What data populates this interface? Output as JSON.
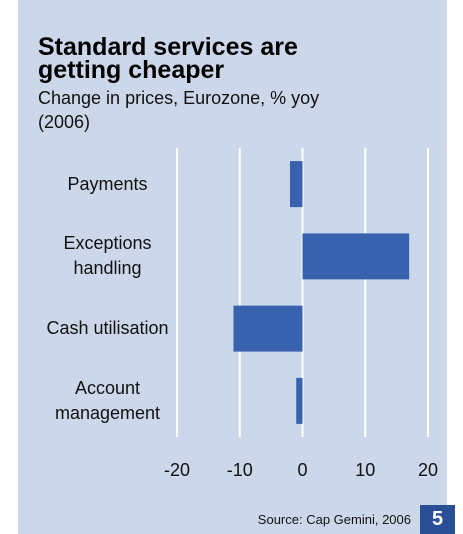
{
  "chart_data": {
    "type": "barh",
    "title": "Standard services are getting cheaper",
    "subtitle": "Change in prices, Eurozone, % yoy (2006)",
    "categories": [
      "Payments",
      "Exceptions handling",
      "Cash utilisation",
      "Account management"
    ],
    "values": [
      -2,
      17,
      -11,
      -1
    ],
    "color": "#3862ad",
    "xlim": [
      -20,
      20
    ],
    "xticks": [
      -20,
      -10,
      0,
      10,
      20
    ],
    "grid": true,
    "source": "Source: Cap Gemini, 2006"
  },
  "page_number": "5"
}
